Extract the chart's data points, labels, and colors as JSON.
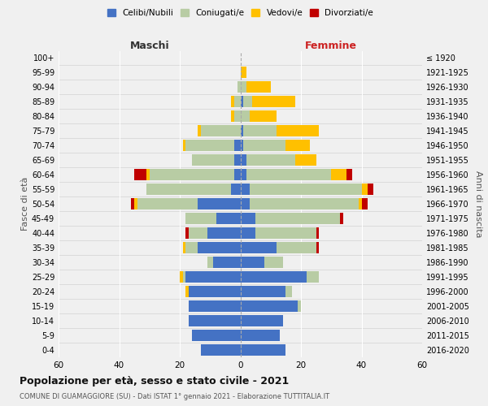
{
  "age_groups": [
    "0-4",
    "5-9",
    "10-14",
    "15-19",
    "20-24",
    "25-29",
    "30-34",
    "35-39",
    "40-44",
    "45-49",
    "50-54",
    "55-59",
    "60-64",
    "65-69",
    "70-74",
    "75-79",
    "80-84",
    "85-89",
    "90-94",
    "95-99",
    "100+"
  ],
  "birth_years": [
    "2016-2020",
    "2011-2015",
    "2006-2010",
    "2001-2005",
    "1996-2000",
    "1991-1995",
    "1986-1990",
    "1981-1985",
    "1976-1980",
    "1971-1975",
    "1966-1970",
    "1961-1965",
    "1956-1960",
    "1951-1955",
    "1946-1950",
    "1941-1945",
    "1936-1940",
    "1931-1935",
    "1926-1930",
    "1921-1925",
    "≤ 1920"
  ],
  "maschi": {
    "celibi": [
      13,
      16,
      17,
      17,
      17,
      18,
      9,
      14,
      11,
      8,
      14,
      3,
      2,
      2,
      2,
      0,
      0,
      0,
      0,
      0,
      0
    ],
    "coniugati": [
      0,
      0,
      0,
      0,
      0,
      1,
      2,
      4,
      6,
      10,
      20,
      28,
      28,
      14,
      16,
      13,
      2,
      2,
      1,
      0,
      0
    ],
    "vedovi": [
      0,
      0,
      0,
      0,
      1,
      1,
      0,
      1,
      0,
      0,
      1,
      0,
      1,
      0,
      1,
      1,
      1,
      1,
      0,
      0,
      0
    ],
    "divorziati": [
      0,
      0,
      0,
      0,
      0,
      0,
      0,
      0,
      1,
      0,
      1,
      0,
      4,
      0,
      0,
      0,
      0,
      0,
      0,
      0,
      0
    ]
  },
  "femmine": {
    "nubili": [
      15,
      13,
      14,
      19,
      15,
      22,
      8,
      12,
      5,
      5,
      3,
      3,
      2,
      2,
      1,
      1,
      0,
      1,
      0,
      0,
      0
    ],
    "coniugate": [
      0,
      0,
      0,
      1,
      2,
      4,
      6,
      13,
      20,
      28,
      36,
      37,
      28,
      16,
      14,
      11,
      3,
      3,
      2,
      0,
      0
    ],
    "vedove": [
      0,
      0,
      0,
      0,
      0,
      0,
      0,
      0,
      0,
      0,
      1,
      2,
      5,
      7,
      8,
      14,
      9,
      14,
      8,
      2,
      0
    ],
    "divorziate": [
      0,
      0,
      0,
      0,
      0,
      0,
      0,
      1,
      1,
      1,
      2,
      2,
      2,
      0,
      0,
      0,
      0,
      0,
      0,
      0,
      0
    ]
  },
  "colors": {
    "celibi": "#4472c4",
    "coniugati": "#b8cca4",
    "vedovi": "#ffc000",
    "divorziati": "#c00000"
  },
  "xlim": 60,
  "title": "Popolazione per età, sesso e stato civile - 2021",
  "subtitle": "COMUNE DI GUAMAGGIORE (SU) - Dati ISTAT 1° gennaio 2021 - Elaborazione TUTTITALIA.IT",
  "ylabel_left": "Fasce di età",
  "ylabel_right": "Anni di nascita",
  "xlabel_left": "Maschi",
  "xlabel_right": "Femmine",
  "legend_labels": [
    "Celibi/Nubili",
    "Coniugati/e",
    "Vedovi/e",
    "Divorziati/e"
  ],
  "background_color": "#f0f0f0"
}
